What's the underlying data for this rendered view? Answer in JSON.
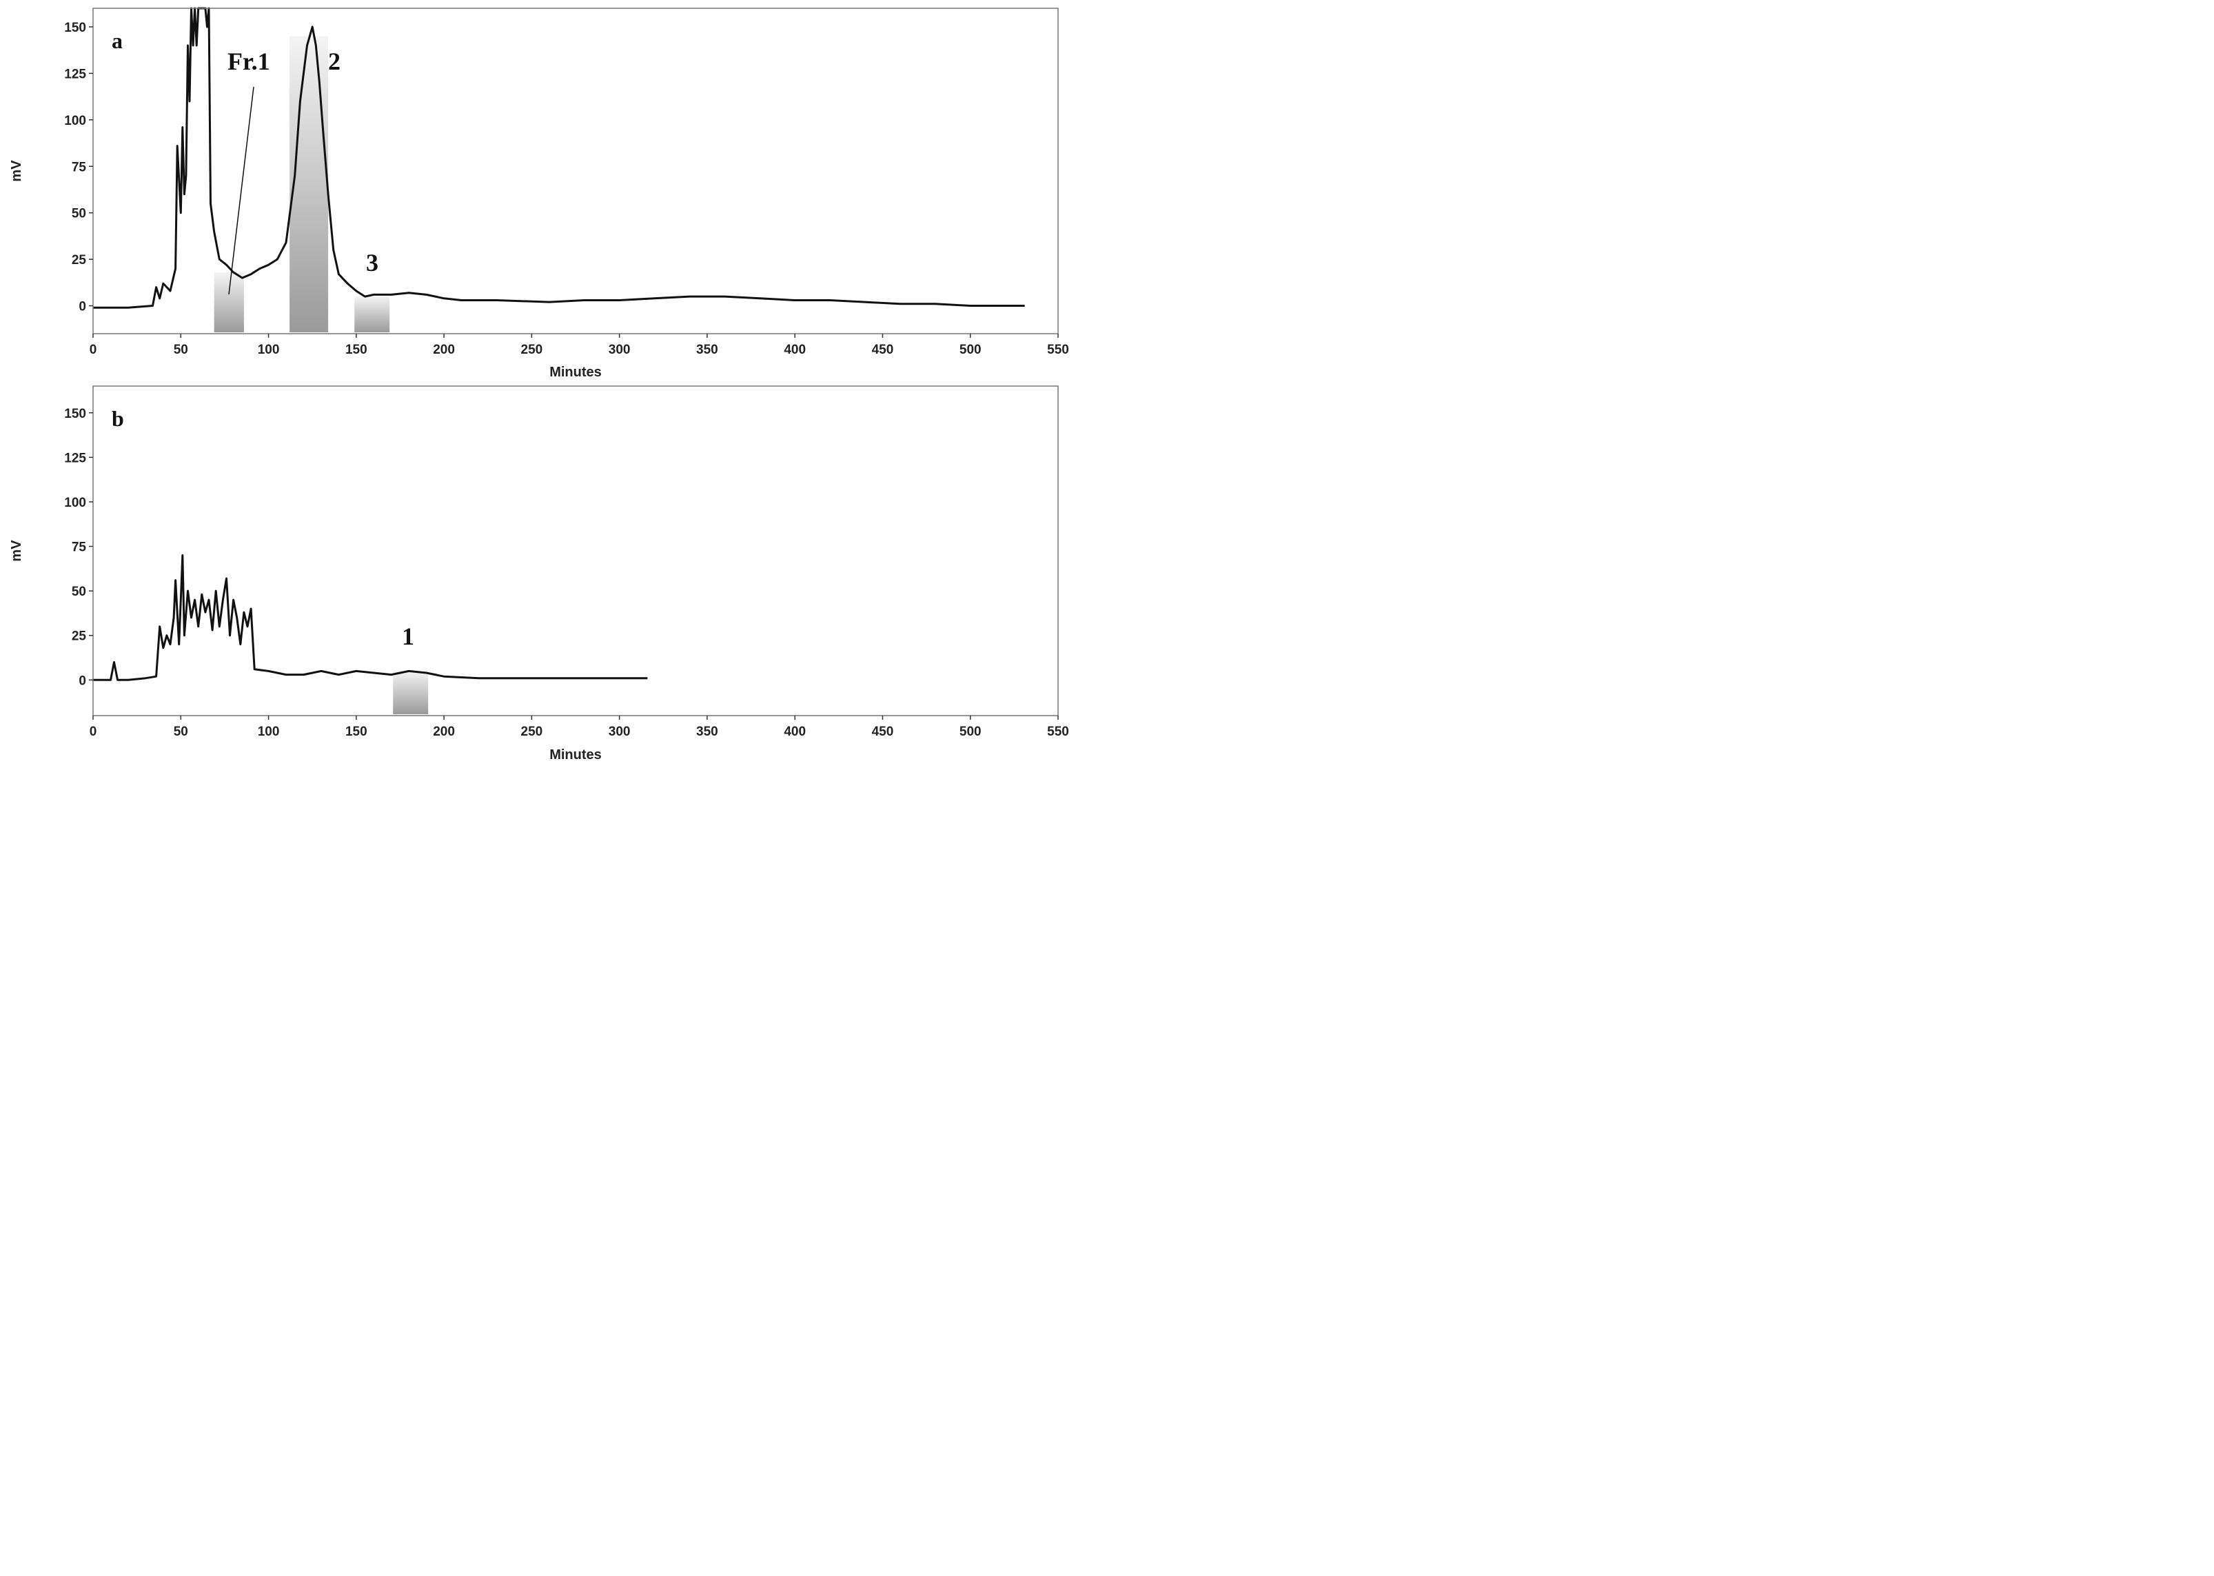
{
  "chart_data": [
    {
      "type": "line",
      "panel_label": "a",
      "xlabel": "Minutes",
      "ylabel": "mV",
      "xlim": [
        0,
        550
      ],
      "ylim": [
        -15,
        160
      ],
      "xticks": [
        0,
        50,
        100,
        150,
        200,
        250,
        300,
        350,
        400,
        450,
        500,
        550
      ],
      "yticks": [
        0,
        25,
        50,
        75,
        100,
        125,
        150
      ],
      "grid": false,
      "series": [
        {
          "x": [
            0,
            20,
            34,
            36,
            38,
            40,
            44,
            47,
            48,
            50,
            51,
            52,
            53,
            54,
            55,
            56,
            57,
            58,
            59,
            60,
            63,
            64,
            65,
            66,
            67,
            69,
            72,
            76,
            80,
            85,
            90,
            95,
            100,
            105,
            110,
            115,
            118,
            122,
            125,
            127,
            129,
            131,
            134,
            137,
            140,
            145,
            150,
            155,
            160,
            170,
            180,
            190,
            200,
            210,
            230,
            260,
            280,
            300,
            320,
            340,
            360,
            380,
            400,
            420,
            440,
            460,
            480,
            500,
            531
          ],
          "y": [
            -1,
            -1,
            0,
            10,
            4,
            12,
            8,
            20,
            86,
            50,
            96,
            60,
            70,
            140,
            110,
            165,
            140,
            165,
            140,
            165,
            165,
            165,
            150,
            165,
            55,
            40,
            25,
            22,
            18,
            15,
            17,
            20,
            22,
            25,
            34,
            70,
            110,
            140,
            150,
            140,
            120,
            95,
            60,
            30,
            17,
            12,
            8,
            5,
            6,
            6,
            7,
            6,
            4,
            3,
            3,
            2,
            3,
            3,
            4,
            5,
            5,
            4,
            3,
            3,
            2,
            1,
            1,
            0,
            0
          ]
        }
      ],
      "shaded_regions": [
        {
          "x": [
            69,
            86
          ]
        },
        {
          "x": [
            112,
            134
          ]
        },
        {
          "x": [
            149,
            169
          ]
        }
      ],
      "annotations": [
        {
          "text": "Fr.1",
          "x": 90,
          "y": 127
        },
        {
          "text": "2",
          "x": 138,
          "y": 127
        },
        {
          "text": "3",
          "x": 161,
          "y": 20
        }
      ]
    },
    {
      "type": "line",
      "panel_label": "b",
      "xlabel": "Minutes",
      "ylabel": "mV",
      "xlim": [
        0,
        550
      ],
      "ylim": [
        -20,
        165
      ],
      "xticks": [
        0,
        50,
        100,
        150,
        200,
        250,
        300,
        350,
        400,
        450,
        500,
        550
      ],
      "yticks": [
        0,
        25,
        50,
        75,
        100,
        125,
        150
      ],
      "grid": false,
      "series": [
        {
          "x": [
            0,
            10,
            12,
            14,
            20,
            30,
            36,
            38,
            40,
            42,
            44,
            46,
            47,
            49,
            50,
            51,
            52,
            54,
            56,
            58,
            60,
            62,
            64,
            66,
            68,
            70,
            72,
            74,
            76,
            78,
            80,
            82,
            84,
            86,
            88,
            90,
            92,
            100,
            110,
            120,
            130,
            140,
            150,
            160,
            170,
            180,
            190,
            200,
            220,
            260,
            300,
            316
          ],
          "y": [
            0,
            0,
            10,
            0,
            0,
            1,
            2,
            30,
            18,
            25,
            20,
            35,
            56,
            20,
            45,
            70,
            25,
            50,
            35,
            45,
            30,
            48,
            38,
            45,
            28,
            50,
            30,
            45,
            57,
            25,
            45,
            35,
            20,
            38,
            30,
            40,
            6,
            5,
            3,
            3,
            5,
            3,
            5,
            4,
            3,
            5,
            4,
            2,
            1,
            1,
            1,
            1
          ]
        }
      ],
      "shaded_regions": [
        {
          "x": [
            171,
            191
          ]
        }
      ],
      "annotations": [
        {
          "text": "1",
          "x": 180,
          "y": 22
        }
      ]
    }
  ]
}
